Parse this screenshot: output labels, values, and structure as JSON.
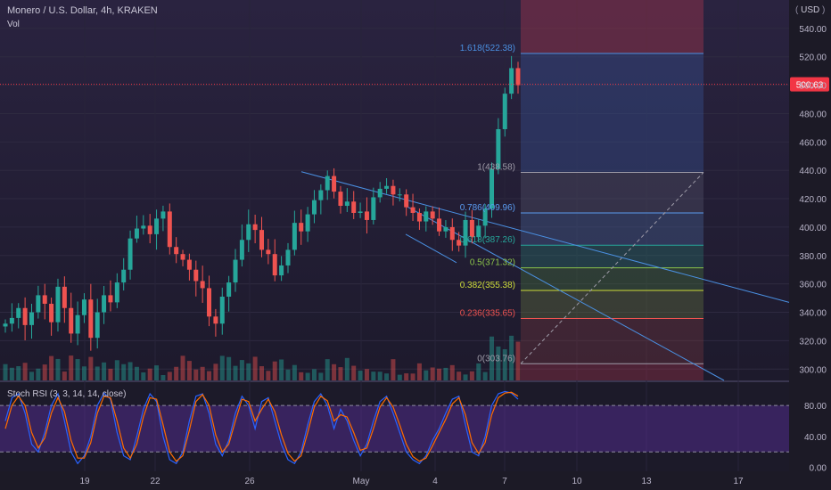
{
  "header": {
    "symbol_line": "Monero / U.S. Dollar, 4h, KRAKEN",
    "volume_label": "Vol",
    "currency": "USD"
  },
  "price_tag": {
    "value": "500.63",
    "color": "#f23645"
  },
  "colors": {
    "up": "#26a69a",
    "down": "#ef5350",
    "stoch_k": "#2962ff",
    "stoch_d": "#ff6d00",
    "trend": "#4a90e2"
  },
  "chart_data": [
    {
      "type": "candlestick",
      "title": "Monero / U.S. Dollar, 4h, KRAKEN",
      "ylim": [
        292,
        560
      ],
      "y_ticks": [
        300,
        320,
        340,
        360,
        380,
        400,
        420,
        440,
        460,
        480,
        500,
        520,
        540
      ],
      "y_tick_labels": [
        "300.00",
        "320.00",
        "340.00",
        "360.00",
        "380.00",
        "400.00",
        "420.00",
        "440.00",
        "460.00",
        "480.00",
        "500.00",
        "520.00",
        "540.00"
      ],
      "x_tick_labels": [
        "19",
        "22",
        "26",
        "May",
        "4",
        "7",
        "10",
        "13",
        "17"
      ],
      "close_guide": [
        332,
        336,
        343,
        331,
        340,
        352,
        346,
        333,
        358,
        343,
        325,
        338,
        349,
        322,
        340,
        352,
        347,
        361,
        370,
        392,
        399,
        401,
        395,
        406,
        411,
        386,
        381,
        377,
        370,
        362,
        357,
        337,
        332,
        351,
        361,
        377,
        391,
        402,
        398,
        384,
        381,
        366,
        373,
        384,
        403,
        397,
        409,
        419,
        426,
        436,
        425,
        415,
        418,
        410,
        411,
        405,
        421,
        427,
        429,
        423,
        423,
        414,
        410,
        404,
        411,
        406,
        397,
        400,
        391,
        387,
        405,
        393,
        401,
        413,
        441,
        469,
        494,
        512,
        500
      ],
      "fibonacci": [
        {
          "ratio": "1.618(522.38)",
          "price": 522.38,
          "color": "#4a90e2"
        },
        {
          "ratio": "1(438.58)",
          "price": 438.58,
          "color": "#9e9ba8"
        },
        {
          "ratio": "0.786(409.96)",
          "price": 409.96,
          "color": "#5a9bf0"
        },
        {
          "ratio": "0.618(387.26)",
          "price": 387.26,
          "color": "#26a69a"
        },
        {
          "ratio": "0.5(371.32)",
          "price": 371.32,
          "color": "#8bc34a"
        },
        {
          "ratio": "0.382(355.38)",
          "price": 355.38,
          "color": "#cddc39"
        },
        {
          "ratio": "0.236(335.65)",
          "price": 335.65,
          "color": "#ef5350"
        },
        {
          "ratio": "0(303.76)",
          "price": 303.76,
          "color": "#9e9ba8"
        }
      ]
    },
    {
      "type": "line",
      "title": "Stoch RSI (3, 3, 14, 14, close)",
      "ylim": [
        -5,
        110
      ],
      "y_ticks": [
        0,
        40,
        80
      ],
      "y_tick_labels": [
        "0.00",
        "40.00",
        "80.00"
      ],
      "bands": [
        20,
        80
      ],
      "series": [
        {
          "values": [
            60,
            90,
            95,
            70,
            30,
            20,
            45,
            80,
            95,
            60,
            20,
            5,
            15,
            40,
            80,
            96,
            88,
            45,
            15,
            10,
            40,
            75,
            95,
            85,
            40,
            10,
            5,
            20,
            60,
            92,
            95,
            70,
            30,
            15,
            35,
            70,
            92,
            80,
            50,
            85,
            90,
            60,
            30,
            10,
            5,
            20,
            55,
            85,
            95,
            80,
            50,
            75,
            60,
            35,
            15,
            30,
            60,
            85,
            92,
            70,
            45,
            20,
            10,
            5,
            15,
            35,
            50,
            70,
            88,
            92,
            55,
            20,
            15,
            40,
            80,
            95,
            98,
            96,
            88
          ]
        },
        {
          "values": [
            50,
            80,
            92,
            80,
            45,
            25,
            38,
            70,
            90,
            72,
            35,
            12,
            12,
            32,
            70,
            92,
            90,
            60,
            25,
            12,
            30,
            65,
            90,
            88,
            55,
            20,
            8,
            15,
            48,
            85,
            94,
            80,
            42,
            20,
            30,
            60,
            88,
            85,
            60,
            75,
            88,
            72,
            42,
            18,
            8,
            15,
            45,
            78,
            92,
            86,
            60,
            68,
            65,
            45,
            22,
            25,
            50,
            78,
            90,
            78,
            55,
            30,
            14,
            8,
            12,
            28,
            45,
            62,
            82,
            90,
            68,
            32,
            18,
            32,
            68,
            90,
            96,
            97,
            92
          ]
        }
      ]
    }
  ]
}
